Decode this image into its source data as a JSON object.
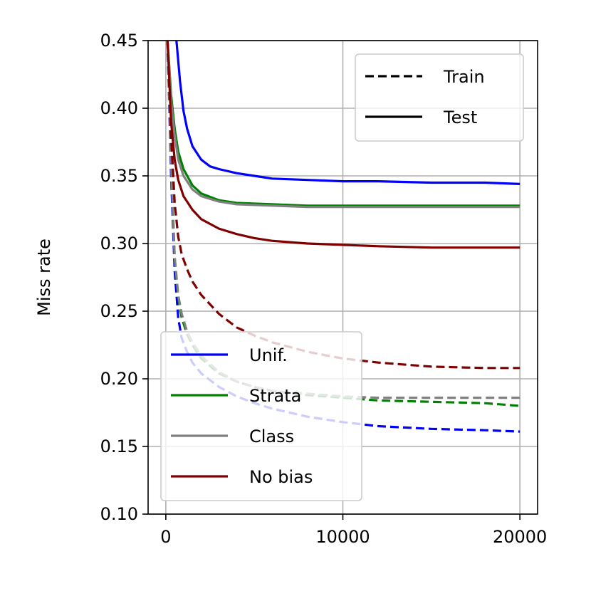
{
  "chart_data": {
    "type": "line",
    "title": "",
    "xlabel": "",
    "ylabel": "Miss rate",
    "xlim": [
      -1000,
      21000
    ],
    "ylim": [
      0.1,
      0.45
    ],
    "xticks": [
      0,
      10000,
      20000
    ],
    "xtick_labels": [
      "0",
      "10000",
      "20000"
    ],
    "yticks": [
      0.1,
      0.15,
      0.2,
      0.25,
      0.3,
      0.35,
      0.4,
      0.45
    ],
    "ytick_labels": [
      "0.10",
      "0.15",
      "0.20",
      "0.25",
      "0.30",
      "0.35",
      "0.40",
      "0.45"
    ],
    "grid": true,
    "style_legend": {
      "placement": "top-right",
      "entries": [
        {
          "label": "Train",
          "style": "dashed"
        },
        {
          "label": "Test",
          "style": "solid"
        }
      ]
    },
    "color_legend": {
      "placement": "bottom-left",
      "entries": [
        {
          "label": "Unif.",
          "color": "#0000ff"
        },
        {
          "label": "Strata",
          "color": "#008000"
        },
        {
          "label": "Class",
          "color": "#808080"
        },
        {
          "label": "No bias",
          "color": "#800000"
        }
      ]
    },
    "series": [
      {
        "name": "Unif.",
        "split": "Test",
        "color": "#0000ff",
        "style": "solid",
        "x": [
          600,
          800,
          1000,
          1200,
          1500,
          2000,
          2500,
          3000,
          4000,
          5000,
          6000,
          8000,
          10000,
          12000,
          15000,
          18000,
          20000
        ],
        "y": [
          0.45,
          0.42,
          0.398,
          0.385,
          0.372,
          0.362,
          0.357,
          0.355,
          0.352,
          0.35,
          0.348,
          0.347,
          0.346,
          0.346,
          0.345,
          0.345,
          0.344
        ]
      },
      {
        "name": "Strata",
        "split": "Test",
        "color": "#008000",
        "style": "solid",
        "x": [
          100,
          300,
          500,
          700,
          1000,
          1500,
          2000,
          3000,
          4000,
          6000,
          8000,
          10000,
          12000,
          15000,
          18000,
          20000
        ],
        "y": [
          0.45,
          0.41,
          0.385,
          0.368,
          0.355,
          0.343,
          0.337,
          0.332,
          0.33,
          0.329,
          0.328,
          0.328,
          0.328,
          0.328,
          0.328,
          0.328
        ]
      },
      {
        "name": "Class",
        "split": "Test",
        "color": "#808080",
        "style": "solid",
        "x": [
          100,
          300,
          500,
          700,
          1000,
          1500,
          2000,
          3000,
          4000,
          6000,
          8000,
          10000,
          12000,
          15000,
          18000,
          20000
        ],
        "y": [
          0.45,
          0.405,
          0.38,
          0.362,
          0.35,
          0.34,
          0.335,
          0.331,
          0.329,
          0.328,
          0.327,
          0.327,
          0.327,
          0.327,
          0.327,
          0.327
        ]
      },
      {
        "name": "No bias",
        "split": "Test",
        "color": "#800000",
        "style": "solid",
        "x": [
          100,
          300,
          500,
          700,
          1000,
          1500,
          2000,
          3000,
          4000,
          5000,
          6000,
          8000,
          10000,
          12000,
          15000,
          18000,
          20000
        ],
        "y": [
          0.45,
          0.39,
          0.362,
          0.347,
          0.335,
          0.325,
          0.318,
          0.311,
          0.307,
          0.304,
          0.302,
          0.3,
          0.299,
          0.298,
          0.297,
          0.297,
          0.297
        ]
      },
      {
        "name": "Unif.",
        "split": "Train",
        "color": "#0000ff",
        "style": "dashed",
        "x": [
          100,
          300,
          500,
          700,
          900,
          1200,
          1500,
          2000,
          3000,
          4000,
          5000,
          6000,
          8000,
          10000,
          12000,
          15000,
          18000,
          20000
        ],
        "y": [
          0.45,
          0.35,
          0.28,
          0.245,
          0.23,
          0.22,
          0.212,
          0.204,
          0.194,
          0.187,
          0.182,
          0.178,
          0.172,
          0.168,
          0.165,
          0.163,
          0.162,
          0.161
        ]
      },
      {
        "name": "Strata",
        "split": "Train",
        "color": "#008000",
        "style": "dashed",
        "x": [
          100,
          300,
          500,
          700,
          900,
          1200,
          1500,
          2000,
          3000,
          4000,
          5000,
          6000,
          8000,
          10000,
          12000,
          15000,
          18000,
          20000
        ],
        "y": [
          0.45,
          0.36,
          0.29,
          0.26,
          0.245,
          0.233,
          0.225,
          0.215,
          0.204,
          0.198,
          0.194,
          0.191,
          0.188,
          0.186,
          0.184,
          0.183,
          0.182,
          0.18
        ]
      },
      {
        "name": "Class",
        "split": "Train",
        "color": "#808080",
        "style": "dashed",
        "x": [
          100,
          300,
          500,
          700,
          900,
          1200,
          1500,
          2000,
          3000,
          4000,
          5000,
          6000,
          8000,
          10000,
          12000,
          15000,
          18000,
          20000
        ],
        "y": [
          0.45,
          0.36,
          0.29,
          0.262,
          0.248,
          0.235,
          0.227,
          0.217,
          0.205,
          0.198,
          0.194,
          0.191,
          0.189,
          0.187,
          0.186,
          0.186,
          0.186,
          0.186
        ]
      },
      {
        "name": "No bias",
        "split": "Train",
        "color": "#800000",
        "style": "dashed",
        "x": [
          100,
          300,
          500,
          700,
          900,
          1200,
          1500,
          2000,
          3000,
          4000,
          5000,
          6000,
          8000,
          10000,
          12000,
          15000,
          18000,
          20000
        ],
        "y": [
          0.45,
          0.38,
          0.33,
          0.305,
          0.292,
          0.281,
          0.272,
          0.262,
          0.248,
          0.238,
          0.232,
          0.227,
          0.22,
          0.215,
          0.212,
          0.209,
          0.208,
          0.208
        ]
      }
    ]
  }
}
